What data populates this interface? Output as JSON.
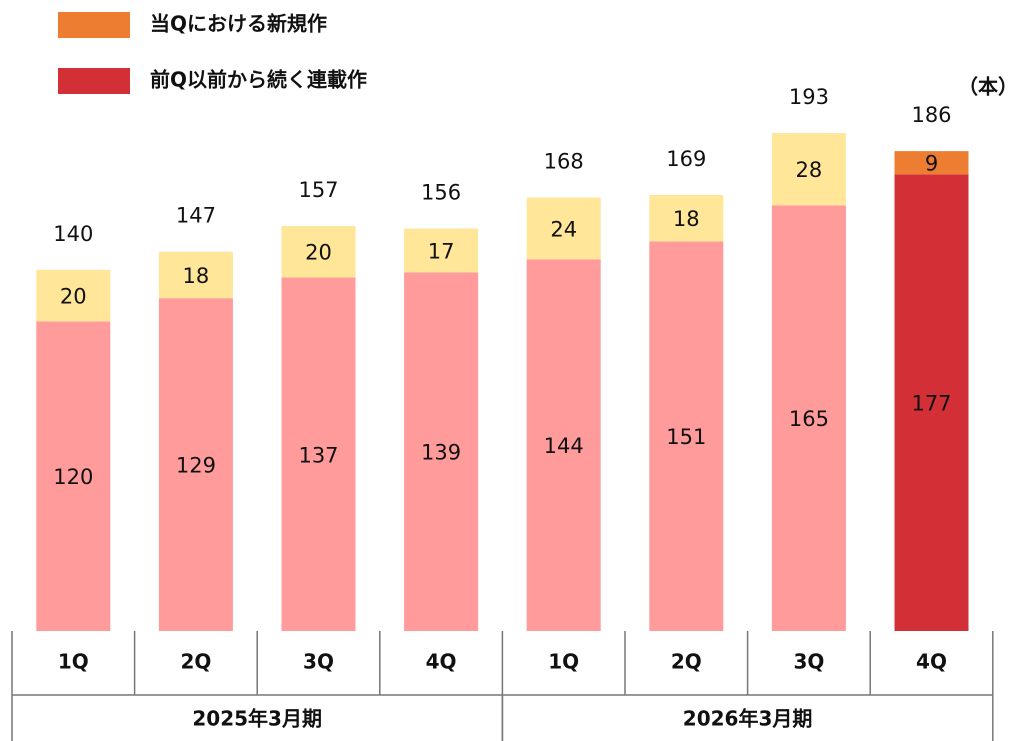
{
  "chart_data": {
    "type": "stacked_bar",
    "unit": "（本）",
    "categories": [
      "1Q",
      "2Q",
      "3Q",
      "4Q",
      "1Q",
      "2Q",
      "3Q",
      "4Q"
    ],
    "groups": [
      {
        "label": "2025年3月期",
        "size": 4
      },
      {
        "label": "2026年3月期",
        "size": 4
      }
    ],
    "series": [
      {
        "name": "前Q以前から続く連載作",
        "color": "#d32f37",
        "colors": [
          "#ff9b9b",
          "#ff9b9b",
          "#ff9b9b",
          "#ff9b9b",
          "#ff9b9b",
          "#ff9b9b",
          "#ff9b9b",
          "#d32f37"
        ],
        "values": [
          120,
          129,
          137,
          139,
          144,
          151,
          165,
          177
        ]
      },
      {
        "name": "当Qにおける新規作",
        "color": "#ed7d31",
        "colors": [
          "#ffe699",
          "#ffe699",
          "#ffe699",
          "#ffe699",
          "#ffe699",
          "#ffe699",
          "#ffe699",
          "#ed7d31"
        ],
        "values": [
          20,
          18,
          20,
          17,
          24,
          18,
          28,
          9
        ]
      }
    ],
    "totals": [
      140,
      147,
      157,
      156,
      168,
      169,
      193,
      186
    ],
    "legend_order": [
      1,
      0
    ]
  }
}
